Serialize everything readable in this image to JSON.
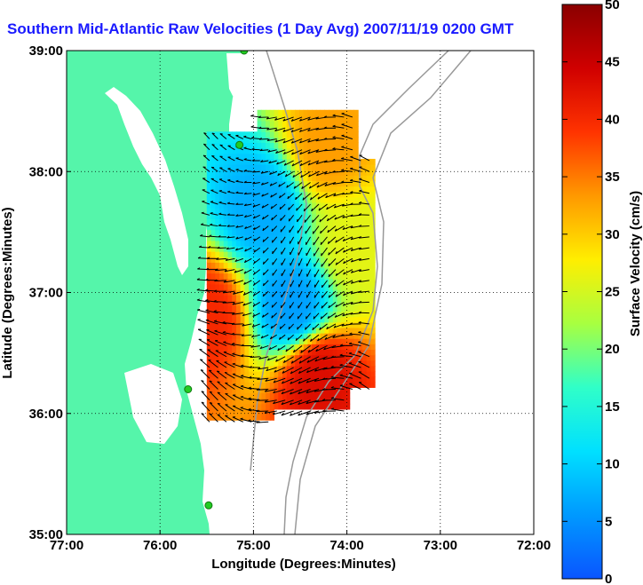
{
  "chart_data": {
    "type": "heatmap",
    "title": "Southern Mid-Atlantic Raw Velocities (1 Day Avg) 2007/11/19 0200 GMT",
    "xlabel": "Longitude (Degrees:Minutes)",
    "ylabel": "Latitude (Degrees:Minutes)",
    "x_ticks": [
      "77:00",
      "76:00",
      "75:00",
      "74:00",
      "73:00",
      "72:00"
    ],
    "y_ticks": [
      "39:00",
      "38:00",
      "37:00",
      "36:00",
      "35:00"
    ],
    "xlim": [
      -77,
      -72
    ],
    "ylim": [
      35,
      39
    ],
    "grid": true,
    "colorbar": {
      "label": "Surface Velocity (cm/s)",
      "ticks": [
        "0",
        "5",
        "10",
        "15",
        "20",
        "25",
        "30",
        "35",
        "40",
        "45",
        "50"
      ],
      "range": [
        0,
        50
      ],
      "colors": [
        "#0a55ff",
        "#0099ff",
        "#00e0ff",
        "#30ffc8",
        "#a8ff40",
        "#ffee00",
        "#ff9900",
        "#ff3300",
        "#d00000",
        "#8a0000"
      ]
    },
    "colors": {
      "land": "#55f5aa",
      "water": "#ffffff",
      "bathymetry": "#999999",
      "station": "#22cc22"
    },
    "stations": [
      {
        "lon": -75.1,
        "lat": 39.0
      },
      {
        "lon": -75.15,
        "lat": 38.22
      },
      {
        "lon": -75.7,
        "lat": 36.2
      },
      {
        "lon": -75.48,
        "lat": 35.24
      }
    ],
    "coverage": {
      "lon_range": [
        -75.5,
        -73.7
      ],
      "lat_range": [
        35.9,
        38.5
      ]
    },
    "velocity_hotspots": [
      {
        "lon": -74.2,
        "lat": 38.2,
        "speed": 33
      },
      {
        "lon": -73.9,
        "lat": 37.4,
        "speed": 26
      },
      {
        "lon": -74.3,
        "lat": 36.3,
        "speed": 43
      },
      {
        "lon": -75.5,
        "lat": 36.8,
        "speed": 40
      },
      {
        "lon": -74.9,
        "lat": 37.7,
        "speed": 7
      },
      {
        "lon": -74.6,
        "lat": 36.9,
        "speed": 6
      }
    ]
  }
}
